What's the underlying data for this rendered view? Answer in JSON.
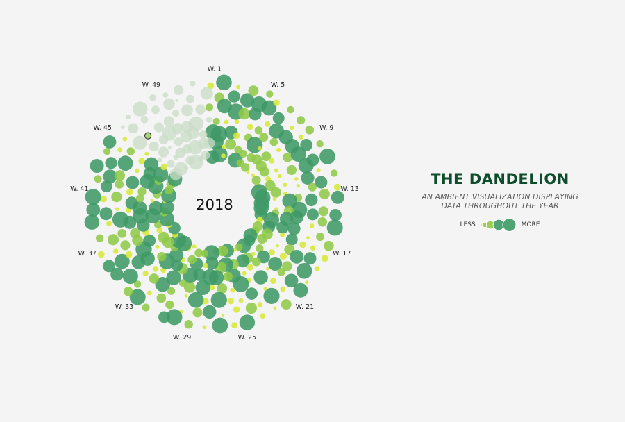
{
  "page": {
    "title": "THE DANDELION",
    "subtitle_lines": [
      "AN AMBIENT VISUALIZATION DISPLAYING",
      "DATA THROUGHOUT THE YEAR"
    ]
  },
  "legend": {
    "less_label": "LESS",
    "more_label": "MORE"
  },
  "colors": {
    "background": "#f4f4f4",
    "title": "#0e4d2b",
    "low": "#d8e83a",
    "mid": "#8fca48",
    "high": "#3f9a66",
    "faded": "#c9dcc6",
    "highlight_stroke": "#2a2a2a"
  },
  "chart_data": {
    "type": "radial-dot",
    "center_label": "2018",
    "weeks_total": 52,
    "rings": 7,
    "value_range": [
      0,
      1
    ],
    "faded_weeks_from": 46,
    "highlight": {
      "week": 47,
      "ring": 4
    },
    "week_labels": [
      {
        "week": 1,
        "label": "W. 1"
      },
      {
        "week": 5,
        "label": "W. 5"
      },
      {
        "week": 9,
        "label": "W. 9"
      },
      {
        "week": 13,
        "label": "W. 13"
      },
      {
        "week": 17,
        "label": "W. 17"
      },
      {
        "week": 21,
        "label": "W. 21"
      },
      {
        "week": 25,
        "label": "W. 25"
      },
      {
        "week": 29,
        "label": "W. 29"
      },
      {
        "week": 33,
        "label": "W. 33"
      },
      {
        "week": 37,
        "label": "W. 37"
      },
      {
        "week": 41,
        "label": "W. 41"
      },
      {
        "week": 45,
        "label": "W. 45"
      },
      {
        "week": 49,
        "label": "W. 49"
      }
    ],
    "legend_levels": [
      0.1,
      0.3,
      0.55,
      0.8,
      1.0
    ]
  }
}
